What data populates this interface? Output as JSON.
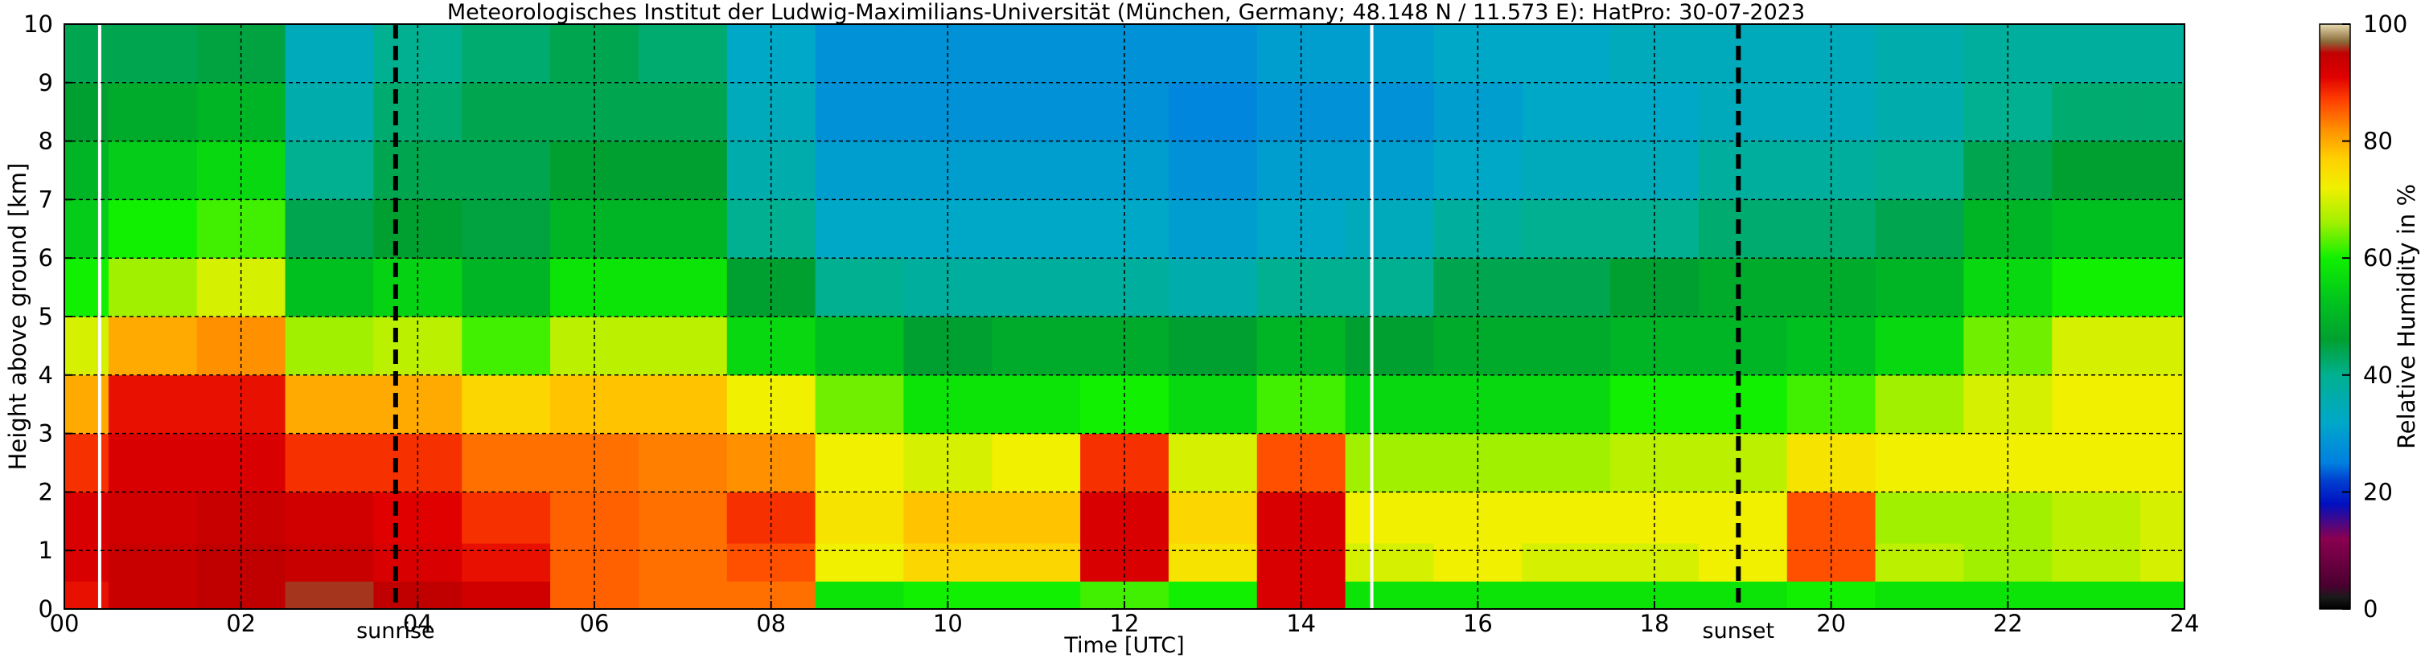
{
  "chart_data": {
    "type": "heatmap",
    "title": "Meteorologisches Institut der Ludwig-Maximilians-Universität (München, Germany; 48.148 N / 11.573 E):    HatPro: 30-07-2023",
    "xlabel": "Time [UTC]",
    "ylabel": "Height above ground [km]",
    "xlim": [
      0,
      24
    ],
    "ylim": [
      0,
      10
    ],
    "x_ticks": [
      "00",
      "02",
      "04",
      "06",
      "08",
      "10",
      "12",
      "14",
      "16",
      "18",
      "20",
      "22",
      "24"
    ],
    "y_ticks": [
      "0",
      "1",
      "2",
      "3",
      "4",
      "5",
      "6",
      "7",
      "8",
      "9",
      "10"
    ],
    "grid": true,
    "events": [
      {
        "label": "sunrise",
        "time": 3.75
      },
      {
        "label": "sunset",
        "time": 18.95
      }
    ],
    "data_gaps": [
      0.4,
      14.8
    ],
    "colorbar": {
      "label": "Relative Humidity in %",
      "range": [
        0,
        100
      ],
      "ticks": [
        "0",
        "20",
        "40",
        "60",
        "80",
        "100"
      ],
      "stops": [
        {
          "value": 0,
          "color": "#000000"
        },
        {
          "value": 2,
          "color": "#1a1a1a"
        },
        {
          "value": 4,
          "color": "#4a0030"
        },
        {
          "value": 12,
          "color": "#8a0050"
        },
        {
          "value": 18,
          "color": "#0010c0"
        },
        {
          "value": 22,
          "color": "#0040d0"
        },
        {
          "value": 25,
          "color": "#0080e0"
        },
        {
          "value": 32,
          "color": "#00a8c8"
        },
        {
          "value": 40,
          "color": "#00b090"
        },
        {
          "value": 46,
          "color": "#00a030"
        },
        {
          "value": 52,
          "color": "#00c020"
        },
        {
          "value": 60,
          "color": "#10f000"
        },
        {
          "value": 66,
          "color": "#a0f000"
        },
        {
          "value": 72,
          "color": "#f0f000"
        },
        {
          "value": 77,
          "color": "#ffd000"
        },
        {
          "value": 82,
          "color": "#ff9000"
        },
        {
          "value": 87,
          "color": "#ff4000"
        },
        {
          "value": 91,
          "color": "#e00000"
        },
        {
          "value": 95,
          "color": "#c00000"
        },
        {
          "value": 97,
          "color": "#8a6a3a"
        },
        {
          "value": 100,
          "color": "#e8dcb0"
        }
      ]
    },
    "rh_profile": {
      "heights_km": [
        0.2,
        0.75,
        1.5,
        2.5,
        3.5,
        4.5,
        5.5,
        6.5,
        7.5,
        8.5,
        9.5
      ],
      "times_utc": [
        0,
        1,
        2,
        3,
        4,
        5,
        6,
        7,
        8,
        9,
        10,
        11,
        12,
        13,
        14,
        15,
        16,
        17,
        18,
        19,
        20,
        21,
        22,
        23,
        24
      ],
      "values": [
        [
          90,
          92,
          92,
          88,
          80,
          70,
          60,
          54,
          50,
          46,
          44
        ],
        [
          94,
          94,
          93,
          92,
          90,
          80,
          66,
          60,
          54,
          48,
          44
        ],
        [
          95,
          95,
          94,
          92,
          90,
          82,
          70,
          62,
          56,
          50,
          45
        ],
        [
          96,
          94,
          93,
          88,
          80,
          66,
          52,
          44,
          40,
          36,
          34
        ],
        [
          95,
          92,
          91,
          88,
          80,
          68,
          55,
          46,
          44,
          42,
          40
        ],
        [
          93,
          90,
          88,
          84,
          76,
          62,
          50,
          45,
          44,
          44,
          42
        ],
        [
          85,
          85,
          85,
          84,
          78,
          68,
          58,
          50,
          46,
          44,
          44
        ],
        [
          84,
          84,
          84,
          83,
          78,
          68,
          58,
          50,
          46,
          44,
          42
        ],
        [
          84,
          86,
          88,
          82,
          72,
          56,
          46,
          40,
          36,
          34,
          32
        ],
        [
          58,
          72,
          74,
          72,
          64,
          52,
          40,
          32,
          30,
          28,
          28
        ],
        [
          60,
          76,
          78,
          70,
          58,
          46,
          38,
          32,
          30,
          28,
          28
        ],
        [
          60,
          76,
          78,
          72,
          58,
          48,
          38,
          32,
          30,
          28,
          28
        ],
        [
          62,
          92,
          92,
          88,
          60,
          48,
          38,
          32,
          30,
          28,
          28
        ],
        [
          60,
          74,
          76,
          70,
          56,
          46,
          36,
          30,
          28,
          26,
          28
        ],
        [
          92,
          92,
          92,
          86,
          62,
          50,
          40,
          32,
          30,
          28,
          30
        ],
        [
          58,
          70,
          72,
          66,
          56,
          46,
          40,
          34,
          30,
          28,
          30
        ],
        [
          58,
          72,
          72,
          66,
          56,
          48,
          44,
          38,
          32,
          30,
          32
        ],
        [
          58,
          70,
          72,
          66,
          56,
          48,
          44,
          40,
          34,
          32,
          32
        ],
        [
          58,
          70,
          72,
          68,
          60,
          50,
          46,
          40,
          34,
          32,
          34
        ],
        [
          58,
          72,
          72,
          68,
          60,
          50,
          48,
          42,
          38,
          34,
          34
        ],
        [
          60,
          86,
          86,
          74,
          62,
          52,
          48,
          42,
          38,
          34,
          34
        ],
        [
          58,
          68,
          66,
          72,
          66,
          56,
          50,
          44,
          40,
          36,
          36
        ],
        [
          58,
          66,
          66,
          72,
          70,
          64,
          56,
          50,
          44,
          40,
          38
        ],
        [
          58,
          68,
          68,
          72,
          72,
          70,
          60,
          52,
          46,
          42,
          38
        ],
        [
          58,
          70,
          70,
          72,
          72,
          70,
          60,
          52,
          46,
          42,
          38
        ]
      ]
    }
  }
}
